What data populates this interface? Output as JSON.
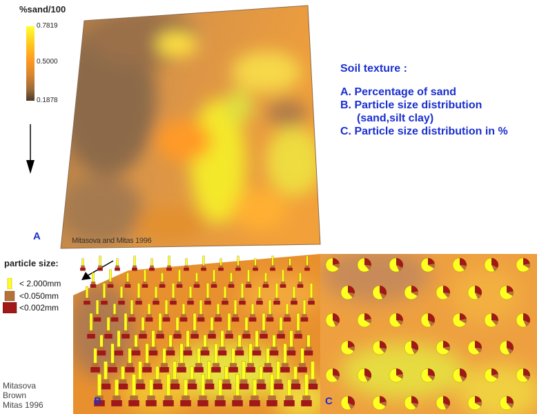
{
  "colorbar": {
    "title": "%sand/100",
    "labels": [
      "0.7819",
      "0.5000",
      "0.1878"
    ]
  },
  "panel_a": {
    "label": "A",
    "credit": "Mitasova and Mitas 1996"
  },
  "info": {
    "title": "Soil texture :",
    "items": [
      "A. Percentage of sand",
      "B. Particle size distribution",
      "(sand,silt clay)",
      "C. Particle size distribution in %"
    ]
  },
  "particle_legend": {
    "title": "particle size:",
    "items": [
      {
        "label": "< 2.000mm",
        "color": "#ffff22"
      },
      {
        "label": "<0.050mm",
        "color": "#b5703a"
      },
      {
        "label": "<0.002mm",
        "color": "#a01818"
      }
    ]
  },
  "panel_b": {
    "label": "B"
  },
  "panel_c": {
    "label": "C"
  },
  "credit_b": [
    "Mitasova",
    "Brown",
    "Mitas 1996"
  ]
}
